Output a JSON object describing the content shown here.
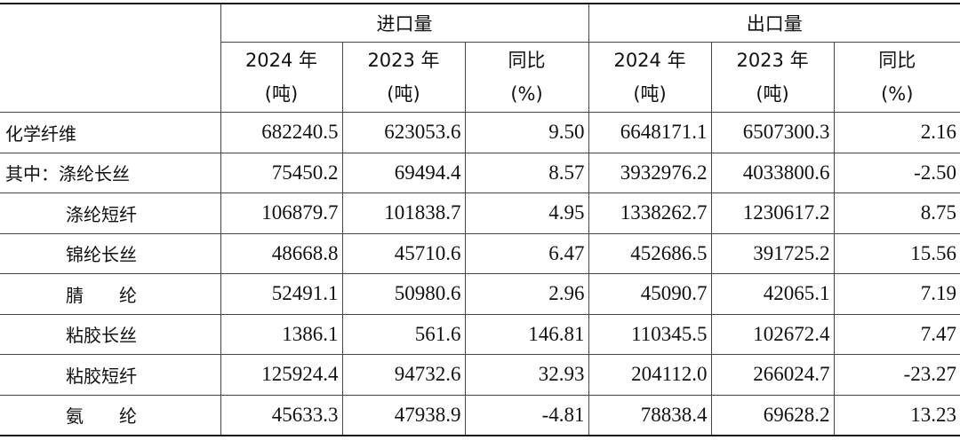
{
  "table": {
    "groups": [
      "进口量",
      "出口量"
    ],
    "columns": [
      {
        "year": "2024 年",
        "unit": "(吨)"
      },
      {
        "year": "2023 年",
        "unit": "(吨)"
      },
      {
        "year": "同比",
        "unit": "(%)"
      },
      {
        "year": "2024 年",
        "unit": "(吨)"
      },
      {
        "year": "2023 年",
        "unit": "(吨)"
      },
      {
        "year": "同比",
        "unit": "(%)"
      }
    ],
    "rows": [
      {
        "label": "化学纤维",
        "cells": [
          "682240.5",
          "623053.6",
          "9.50",
          "6648171.1",
          "6507300.3",
          "2.16"
        ]
      },
      {
        "label": "其中：涤纶长丝",
        "cells": [
          "75450.2",
          "69494.4",
          "8.57",
          "3932976.2",
          "4033800.6",
          "-2.50"
        ]
      },
      {
        "label": "涤纶短纤",
        "cells": [
          "106879.7",
          "101838.7",
          "4.95",
          "1338262.7",
          "1230617.2",
          "8.75"
        ]
      },
      {
        "label": "锦纶长丝",
        "cells": [
          "48668.8",
          "45710.6",
          "6.47",
          "452686.5",
          "391725.2",
          "15.56"
        ]
      },
      {
        "label": "腈　　纶",
        "cells": [
          "52491.1",
          "50980.6",
          "2.96",
          "45090.7",
          "42065.1",
          "7.19"
        ]
      },
      {
        "label": "粘胶长丝",
        "cells": [
          "1386.1",
          "561.6",
          "146.81",
          "110345.5",
          "102672.4",
          "7.47"
        ]
      },
      {
        "label": "粘胶短纤",
        "cells": [
          "125924.4",
          "94732.6",
          "32.93",
          "204112.0",
          "266024.7",
          "-23.27"
        ]
      },
      {
        "label": "氨　　纶",
        "cells": [
          "45633.3",
          "47938.9",
          "-4.81",
          "78838.4",
          "69628.2",
          "13.23"
        ]
      }
    ]
  }
}
